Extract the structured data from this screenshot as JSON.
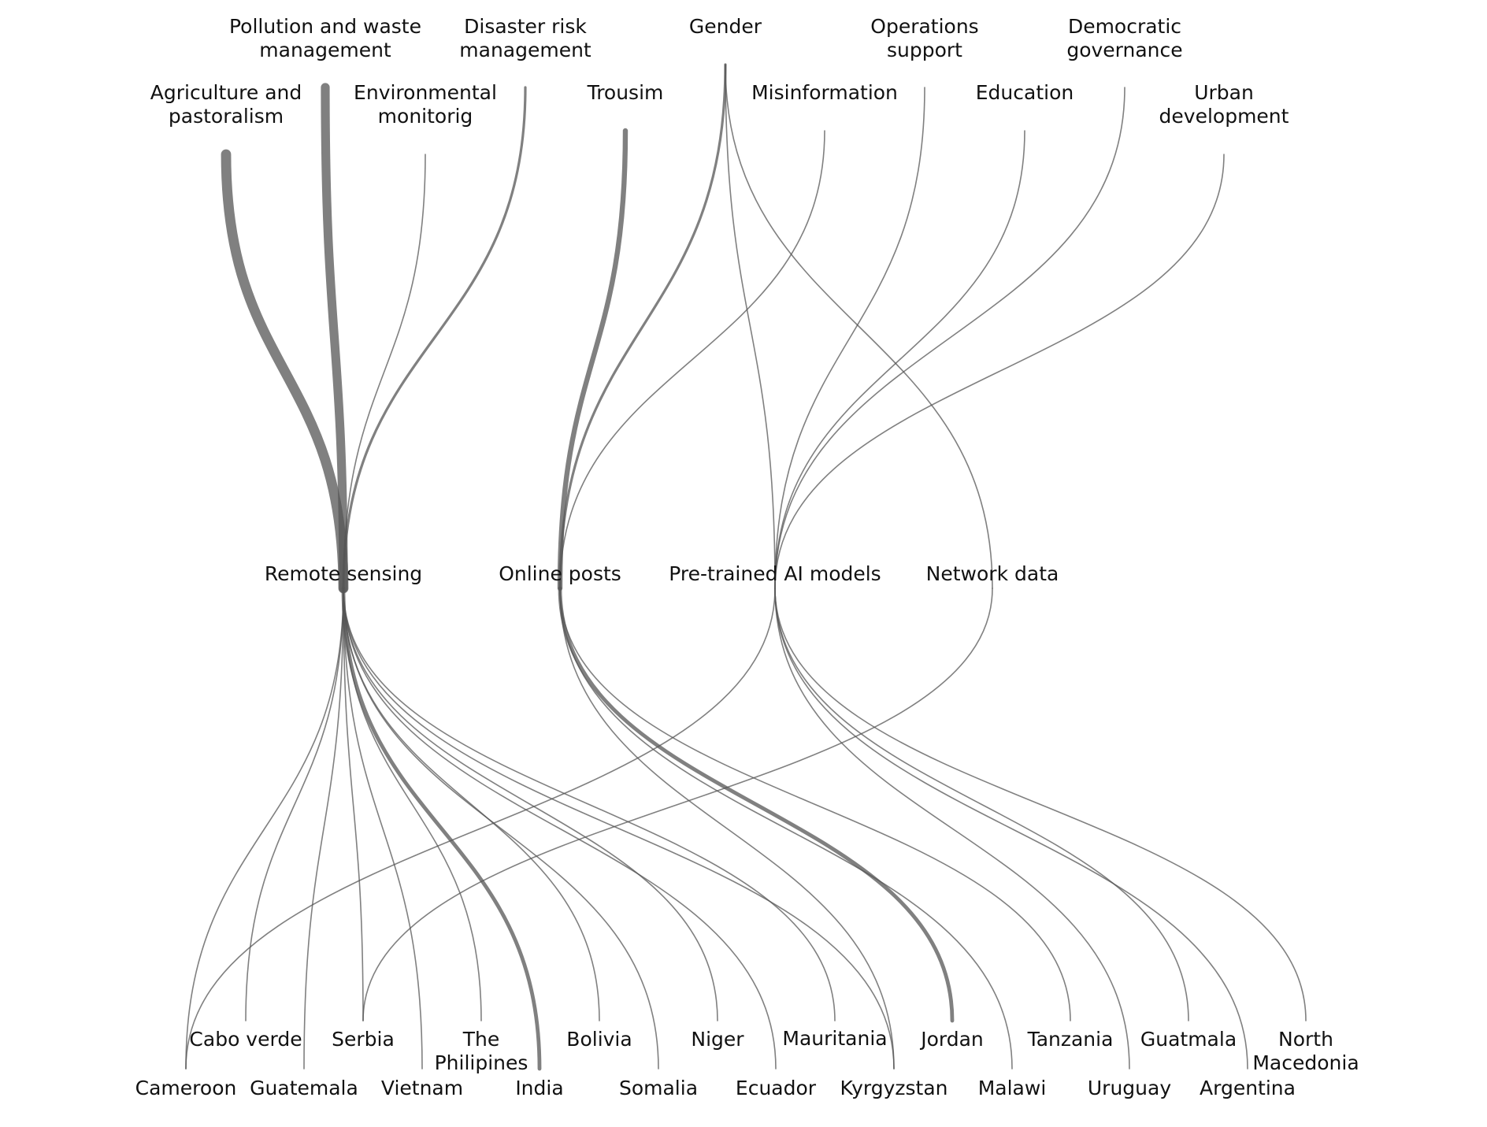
{
  "colors": {
    "link": "#555555",
    "link_opacity": 0.75,
    "text": "#111111",
    "background": "#ffffff"
  },
  "sectors": [
    {
      "id": "agri",
      "lines": [
        "Agriculture and",
        "pastoralism"
      ]
    },
    {
      "id": "pollution",
      "lines": [
        "Pollution and waste",
        "management"
      ]
    },
    {
      "id": "envmon",
      "lines": [
        "Environmental",
        "monitorig"
      ]
    },
    {
      "id": "disaster",
      "lines": [
        "Disaster risk",
        "management"
      ]
    },
    {
      "id": "tourism",
      "lines": [
        "Trousim"
      ]
    },
    {
      "id": "gender",
      "lines": [
        "Gender"
      ]
    },
    {
      "id": "misinfo",
      "lines": [
        "Misinformation"
      ]
    },
    {
      "id": "ops",
      "lines": [
        "Operations",
        "support"
      ]
    },
    {
      "id": "education",
      "lines": [
        "Education"
      ]
    },
    {
      "id": "democratic",
      "lines": [
        "Democratic",
        "governance"
      ]
    },
    {
      "id": "urban",
      "lines": [
        "Urban",
        "development"
      ]
    }
  ],
  "sources": [
    {
      "id": "rs",
      "label": "Remote sensing"
    },
    {
      "id": "op",
      "label": "Online posts"
    },
    {
      "id": "ai",
      "label": "Pre-trained AI models"
    },
    {
      "id": "nd",
      "label": "Network data"
    }
  ],
  "countries": [
    {
      "id": "cameroon",
      "lines": [
        "Cameroon"
      ]
    },
    {
      "id": "caboverde",
      "lines": [
        "Cabo verde"
      ]
    },
    {
      "id": "guatemala",
      "lines": [
        "Guatemala"
      ]
    },
    {
      "id": "serbia",
      "lines": [
        "Serbia"
      ]
    },
    {
      "id": "vietnam",
      "lines": [
        "Vietnam"
      ]
    },
    {
      "id": "philippines",
      "lines": [
        "The",
        "Philipines"
      ]
    },
    {
      "id": "india",
      "lines": [
        "India"
      ]
    },
    {
      "id": "bolivia",
      "lines": [
        "Bolivia"
      ]
    },
    {
      "id": "somalia",
      "lines": [
        "Somalia"
      ]
    },
    {
      "id": "niger",
      "lines": [
        "Niger"
      ]
    },
    {
      "id": "ecuador",
      "lines": [
        "Ecuador"
      ]
    },
    {
      "id": "mauritania",
      "lines": [
        "Mauritania"
      ]
    },
    {
      "id": "kyrgyzstan",
      "lines": [
        "Kyrgyzstan"
      ]
    },
    {
      "id": "jordan",
      "lines": [
        "Jordan"
      ]
    },
    {
      "id": "malawi",
      "lines": [
        "Malawi"
      ]
    },
    {
      "id": "tanzania",
      "lines": [
        "Tanzania"
      ]
    },
    {
      "id": "uruguay",
      "lines": [
        "Uruguay"
      ]
    },
    {
      "id": "guatmala",
      "lines": [
        "Guatmala"
      ]
    },
    {
      "id": "argentina",
      "lines": [
        "Argentina"
      ]
    },
    {
      "id": "northmacedonia",
      "lines": [
        "North",
        "Macedonia"
      ]
    }
  ],
  "links_upper": [
    {
      "sector": "agri",
      "source": "rs",
      "weight": 8
    },
    {
      "sector": "pollution",
      "source": "rs",
      "weight": 7
    },
    {
      "sector": "envmon",
      "source": "rs",
      "weight": 1
    },
    {
      "sector": "disaster",
      "source": "rs",
      "weight": 2
    },
    {
      "sector": "tourism",
      "source": "op",
      "weight": 4
    },
    {
      "sector": "gender",
      "source": "op",
      "weight": 2
    },
    {
      "sector": "gender",
      "source": "ai",
      "weight": 1
    },
    {
      "sector": "gender",
      "source": "nd",
      "weight": 1
    },
    {
      "sector": "misinfo",
      "source": "op",
      "weight": 1
    },
    {
      "sector": "ops",
      "source": "ai",
      "weight": 1
    },
    {
      "sector": "education",
      "source": "ai",
      "weight": 1
    },
    {
      "sector": "democratic",
      "source": "ai",
      "weight": 1
    },
    {
      "sector": "urban",
      "source": "ai",
      "weight": 1
    }
  ],
  "links_lower": [
    {
      "source": "rs",
      "country": "cameroon",
      "weight": 1
    },
    {
      "source": "rs",
      "country": "caboverde",
      "weight": 1
    },
    {
      "source": "rs",
      "country": "guatemala",
      "weight": 1
    },
    {
      "source": "rs",
      "country": "serbia",
      "weight": 1
    },
    {
      "source": "rs",
      "country": "vietnam",
      "weight": 1
    },
    {
      "source": "rs",
      "country": "philippines",
      "weight": 1
    },
    {
      "source": "rs",
      "country": "india",
      "weight": 3
    },
    {
      "source": "rs",
      "country": "bolivia",
      "weight": 1
    },
    {
      "source": "rs",
      "country": "somalia",
      "weight": 1
    },
    {
      "source": "rs",
      "country": "niger",
      "weight": 1
    },
    {
      "source": "rs",
      "country": "ecuador",
      "weight": 1
    },
    {
      "source": "rs",
      "country": "mauritania",
      "weight": 1
    },
    {
      "source": "rs",
      "country": "kyrgyzstan",
      "weight": 1
    },
    {
      "source": "op",
      "country": "jordan",
      "weight": 3
    },
    {
      "source": "op",
      "country": "kyrgyzstan",
      "weight": 1
    },
    {
      "source": "op",
      "country": "malawi",
      "weight": 1
    },
    {
      "source": "op",
      "country": "tanzania",
      "weight": 1
    },
    {
      "source": "ai",
      "country": "cameroon",
      "weight": 1
    },
    {
      "source": "ai",
      "country": "uruguay",
      "weight": 1
    },
    {
      "source": "ai",
      "country": "guatmala",
      "weight": 1
    },
    {
      "source": "ai",
      "country": "argentina",
      "weight": 1
    },
    {
      "source": "ai",
      "country": "northmacedonia",
      "weight": 1
    },
    {
      "source": "nd",
      "country": "serbia",
      "weight": 1
    }
  ]
}
